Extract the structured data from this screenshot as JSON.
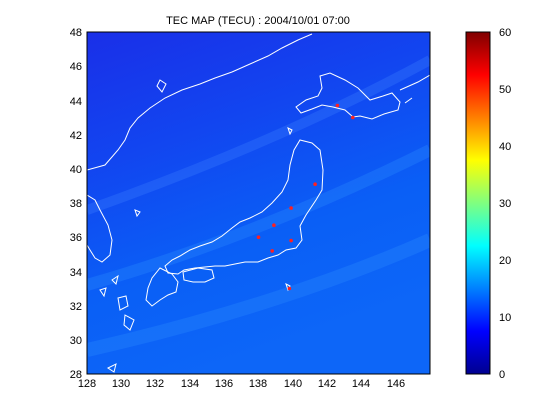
{
  "map": {
    "title": "TEC MAP (TECU) : 2004/10/01 07:00",
    "lon_range": [
      128,
      148
    ],
    "lat_range": [
      28,
      48
    ],
    "lon_ticks": [
      "128",
      "130",
      "132",
      "134",
      "136",
      "138",
      "140",
      "142",
      "144",
      "146"
    ],
    "lat_ticks": [
      "28",
      "30",
      "32",
      "34",
      "36",
      "38",
      "40",
      "42",
      "44",
      "46",
      "48"
    ],
    "coastline_color": "#ffffff",
    "station_color": "#ff2020",
    "stations": [
      {
        "lon": 142.6,
        "lat": 43.7
      },
      {
        "lon": 143.5,
        "lat": 43.0
      },
      {
        "lon": 141.3,
        "lat": 39.1
      },
      {
        "lon": 139.9,
        "lat": 37.7
      },
      {
        "lon": 138.9,
        "lat": 36.7
      },
      {
        "lon": 138.0,
        "lat": 36.0
      },
      {
        "lon": 139.9,
        "lat": 35.8
      },
      {
        "lon": 138.8,
        "lat": 35.2
      },
      {
        "lon": 139.8,
        "lat": 33.0
      }
    ]
  },
  "colorbar": {
    "range": [
      0,
      60
    ],
    "ticks": [
      "0",
      "10",
      "20",
      "30",
      "40",
      "50",
      "60"
    ],
    "colormap": "jet"
  }
}
